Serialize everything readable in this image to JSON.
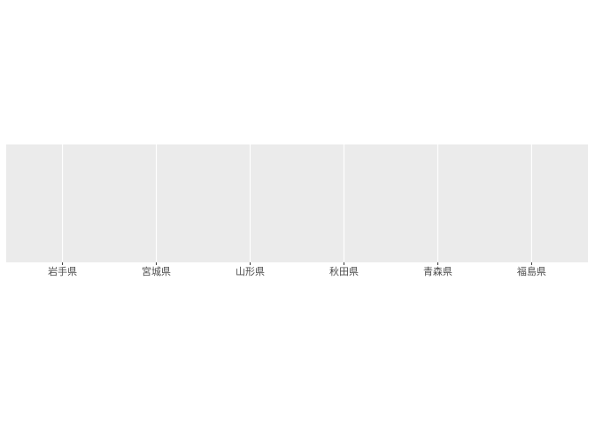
{
  "colors": {
    "panel_background": "#ebebeb",
    "gridline": "#ffffff",
    "tick": "#333333",
    "tick_label": "#4d4d4d",
    "page_background": "#ffffff"
  },
  "chart_data": {
    "type": "bar",
    "title": "",
    "xlabel": "",
    "ylabel": "",
    "categories": [
      "岩手県",
      "宮城県",
      "山形県",
      "秋田県",
      "青森県",
      "福島県"
    ],
    "y_axis_visible": false,
    "grid": true,
    "legend": "none"
  }
}
